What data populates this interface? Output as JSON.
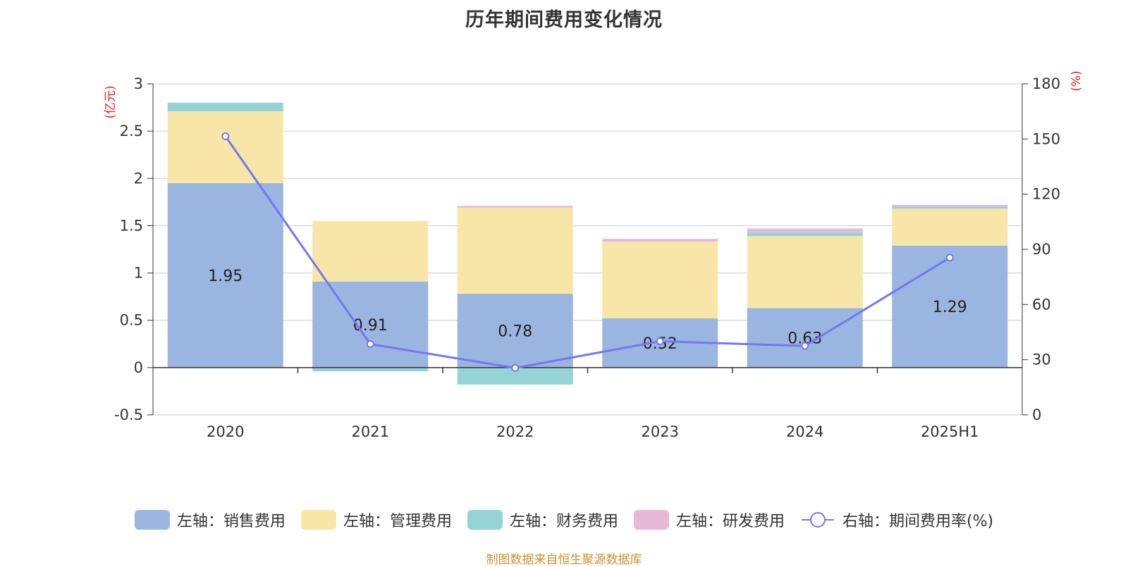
{
  "title": "历年期间费用变化情况",
  "left_unit": "(亿元)",
  "right_unit": "(%)",
  "source": "制图数据来自恒生聚源数据库",
  "colors": {
    "sales": "#9ab6e0",
    "admin": "#f8e6a8",
    "finance": "#96d3d5",
    "rnd": "#e8b8d9",
    "rate": "#7478f0",
    "unit": "#e0201f",
    "grid": "#cccccc",
    "axis": "#333333",
    "source": "#c9922e"
  },
  "legend": [
    {
      "label": "左轴：销售费用",
      "key": "sales",
      "kind": "box"
    },
    {
      "label": "左轴：管理费用",
      "key": "admin",
      "kind": "box"
    },
    {
      "label": "左轴：财务费用",
      "key": "finance",
      "kind": "box"
    },
    {
      "label": "左轴：研发费用",
      "key": "rnd",
      "kind": "box"
    },
    {
      "label": "右轴：期间费用率(%)",
      "key": "rate",
      "kind": "line"
    }
  ],
  "chart_data": {
    "type": "bar",
    "stacked": true,
    "categories": [
      "2020",
      "2021",
      "2022",
      "2023",
      "2024",
      "2025H1"
    ],
    "left_axis": {
      "ylim": [
        -0.5,
        3
      ],
      "ticks": [
        -0.5,
        0,
        0.5,
        1,
        1.5,
        2,
        2.5,
        3
      ],
      "tick_labels": [
        "-0.5",
        "0",
        "0.5",
        "1",
        "1.5",
        "2",
        "2.5",
        "3"
      ]
    },
    "right_axis": {
      "ylim": [
        0,
        180
      ],
      "ticks": [
        0,
        30,
        60,
        90,
        120,
        150,
        180
      ],
      "tick_labels": [
        "0",
        "30",
        "60",
        "90",
        "120",
        "150",
        "180"
      ]
    },
    "series": [
      {
        "name": "左轴：销售费用",
        "key": "sales",
        "axis": "left",
        "values": [
          1.95,
          0.91,
          0.78,
          0.52,
          0.63,
          1.29
        ],
        "labels": [
          "1.95",
          "0.91",
          "0.78",
          "0.52",
          "0.63",
          "1.29"
        ]
      },
      {
        "name": "左轴：管理费用",
        "key": "admin",
        "axis": "left",
        "values": [
          0.76,
          0.64,
          0.91,
          0.81,
          0.76,
          0.39
        ]
      },
      {
        "name": "左轴：财务费用",
        "key": "finance",
        "axis": "left",
        "values": [
          0.09,
          -0.04,
          -0.18,
          0.0,
          0.04,
          0.02
        ]
      },
      {
        "name": "左轴：研发费用",
        "key": "rnd",
        "axis": "left",
        "values": [
          0.0,
          0.0,
          0.02,
          0.03,
          0.04,
          0.02
        ]
      },
      {
        "name": "右轴：期间费用率(%)",
        "key": "rate",
        "axis": "right",
        "type": "line",
        "values": [
          151.5,
          38.5,
          25.5,
          40.0,
          37.5,
          85.5
        ]
      }
    ]
  }
}
